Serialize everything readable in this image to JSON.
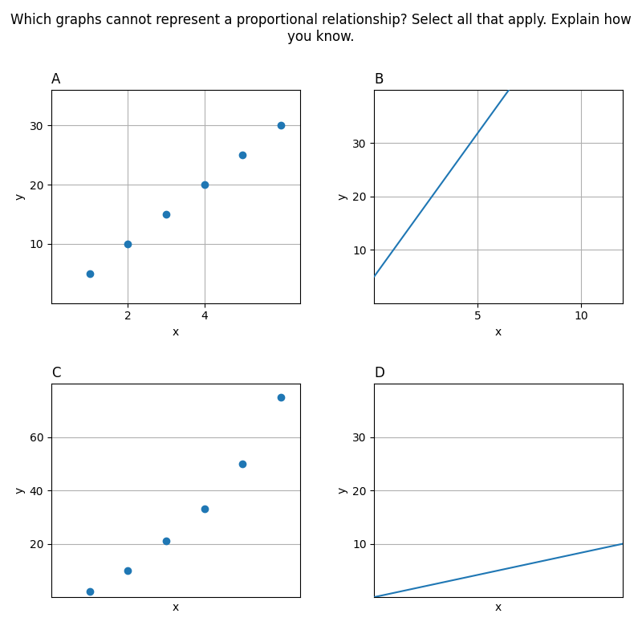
{
  "title": "Which graphs cannot represent a proportional relationship? Select all that apply. Explain how you know.",
  "chart_data": [
    {
      "type": "scatter",
      "title": "A",
      "x_label": "x",
      "y_label": "y",
      "x": [
        1,
        2,
        3,
        4,
        5,
        6
      ],
      "values": [
        5,
        10,
        15,
        20,
        25,
        30
      ],
      "xlim": [
        0,
        6.5
      ],
      "ylim": [
        0,
        36
      ],
      "xticks": [
        2,
        4
      ],
      "yticks": [
        10,
        20,
        30
      ],
      "grid": true
    },
    {
      "type": "line",
      "title": "B",
      "x_label": "x",
      "y_label": "y",
      "x": [
        0,
        6.5
      ],
      "values": [
        5,
        40
      ],
      "xlim": [
        0,
        12
      ],
      "ylim": [
        0,
        40
      ],
      "xticks": [
        5,
        10
      ],
      "yticks": [
        10,
        20,
        30
      ],
      "grid": true
    },
    {
      "type": "scatter",
      "title": "C",
      "x_label": "x",
      "y_label": "y",
      "x": [
        1,
        2,
        3,
        4,
        5,
        6
      ],
      "values": [
        2,
        10,
        21,
        33,
        50,
        75
      ],
      "xlim": [
        0,
        6.5
      ],
      "ylim": [
        0,
        80
      ],
      "xticks": [],
      "yticks": [
        20,
        40,
        60
      ],
      "grid": true,
      "tick_labels": "y"
    },
    {
      "type": "line",
      "title": "D",
      "x_label": "x",
      "y_label": "y",
      "x": [
        0,
        12
      ],
      "values": [
        0,
        10
      ],
      "xlim": [
        0,
        12
      ],
      "ylim": [
        0,
        40
      ],
      "xticks": [],
      "yticks": [
        10,
        20,
        30
      ],
      "grid": true,
      "tick_labels": "y"
    }
  ]
}
